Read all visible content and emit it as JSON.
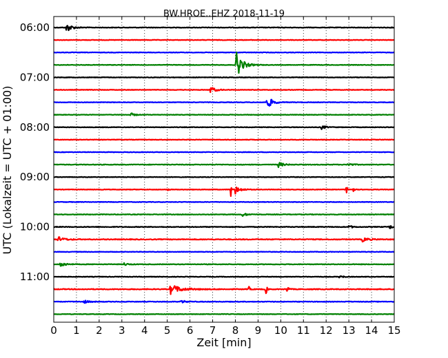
{
  "chart_data": {
    "type": "line",
    "title": "BW.HROE..EHZ 2018-11-19",
    "xlabel": "Zeit  [min]",
    "ylabel": "UTC (Lokalzeit = UTC + 01:00)",
    "xlim": [
      0,
      15
    ],
    "x_ticks": [
      "0",
      "1",
      "2",
      "3",
      "4",
      "5",
      "6",
      "7",
      "8",
      "9",
      "10",
      "11",
      "12",
      "13",
      "14",
      "15"
    ],
    "y_ticks": [
      "06:00",
      "07:00",
      "08:00",
      "09:00",
      "10:00",
      "11:00"
    ],
    "grid": "vertical dotted",
    "trace_colors": [
      "#000000",
      "#ff0000",
      "#0000ff",
      "#008000"
    ],
    "row_interval_min": 15,
    "series": [
      {
        "start": "06:00",
        "base_noise": 0.35,
        "events": [
          {
            "t": 0.55,
            "amp": 6,
            "dur": 0.5
          }
        ]
      },
      {
        "start": "06:15",
        "base_noise": 0.3,
        "events": []
      },
      {
        "start": "06:30",
        "base_noise": 0.3,
        "events": []
      },
      {
        "start": "06:45",
        "base_noise": 0.3,
        "events": [
          {
            "t": 8.05,
            "amp": 15,
            "dur": 0.6
          }
        ]
      },
      {
        "start": "07:00",
        "base_noise": 0.3,
        "events": []
      },
      {
        "start": "07:15",
        "base_noise": 0.3,
        "events": [
          {
            "t": 6.9,
            "amp": 4,
            "dur": 0.5
          }
        ]
      },
      {
        "start": "07:30",
        "base_noise": 0.3,
        "events": [
          {
            "t": 9.4,
            "amp": 8,
            "dur": 0.5
          }
        ]
      },
      {
        "start": "07:45",
        "base_noise": 0.3,
        "events": [
          {
            "t": 3.4,
            "amp": 2,
            "dur": 0.4
          }
        ]
      },
      {
        "start": "08:00",
        "base_noise": 0.3,
        "events": [
          {
            "t": 11.8,
            "amp": 2.5,
            "dur": 0.4
          }
        ]
      },
      {
        "start": "08:15",
        "base_noise": 0.3,
        "events": []
      },
      {
        "start": "08:30",
        "base_noise": 0.3,
        "events": []
      },
      {
        "start": "08:45",
        "base_noise": 0.35,
        "events": [
          {
            "t": 9.9,
            "amp": 3,
            "dur": 0.5
          },
          {
            "t": 12.9,
            "amp": 2,
            "dur": 0.5
          }
        ]
      },
      {
        "start": "09:00",
        "base_noise": 0.3,
        "events": []
      },
      {
        "start": "09:15",
        "base_noise": 0.3,
        "events": [
          {
            "t": 5.0,
            "amp": 2,
            "dur": 0.1
          },
          {
            "t": 7.8,
            "amp": 8,
            "dur": 0.1
          },
          {
            "t": 8.0,
            "amp": 5,
            "dur": 0.5
          },
          {
            "t": 12.9,
            "amp": 5,
            "dur": 0.1
          },
          {
            "t": 13.2,
            "amp": 3,
            "dur": 0.1
          }
        ]
      },
      {
        "start": "09:30",
        "base_noise": 0.3,
        "events": []
      },
      {
        "start": "09:45",
        "base_noise": 0.35,
        "events": [
          {
            "t": 8.3,
            "amp": 2,
            "dur": 0.5
          }
        ]
      },
      {
        "start": "10:00",
        "base_noise": 0.4,
        "events": [
          {
            "t": 13.0,
            "amp": 2,
            "dur": 0.3
          },
          {
            "t": 14.8,
            "amp": 2,
            "dur": 0.3
          }
        ]
      },
      {
        "start": "10:15",
        "base_noise": 0.45,
        "events": [
          {
            "t": 0.2,
            "amp": 3,
            "dur": 0.6
          },
          {
            "t": 13.6,
            "amp": 2.5,
            "dur": 0.6
          }
        ]
      },
      {
        "start": "10:30",
        "base_noise": 0.3,
        "events": []
      },
      {
        "start": "10:45",
        "base_noise": 0.35,
        "events": [
          {
            "t": 0.3,
            "amp": 3,
            "dur": 0.5
          },
          {
            "t": 3.1,
            "amp": 1.5,
            "dur": 0.4
          }
        ]
      },
      {
        "start": "11:00",
        "base_noise": 0.3,
        "events": [
          {
            "t": 12.6,
            "amp": 2,
            "dur": 0.3
          }
        ]
      },
      {
        "start": "11:15",
        "base_noise": 0.45,
        "events": [
          {
            "t": 5.15,
            "amp": 8,
            "dur": 0.1
          },
          {
            "t": 5.3,
            "amp": 4,
            "dur": 1.0
          },
          {
            "t": 8.6,
            "amp": 3,
            "dur": 0.1
          },
          {
            "t": 9.35,
            "amp": 6,
            "dur": 0.1
          },
          {
            "t": 10.3,
            "amp": 8,
            "dur": 0.1
          }
        ]
      },
      {
        "start": "11:30",
        "base_noise": 0.35,
        "events": [
          {
            "t": 1.3,
            "amp": 2,
            "dur": 0.5
          },
          {
            "t": 5.6,
            "amp": 2,
            "dur": 0.4
          }
        ]
      },
      {
        "start": "11:45",
        "base_noise": 0.3,
        "events": []
      }
    ]
  }
}
